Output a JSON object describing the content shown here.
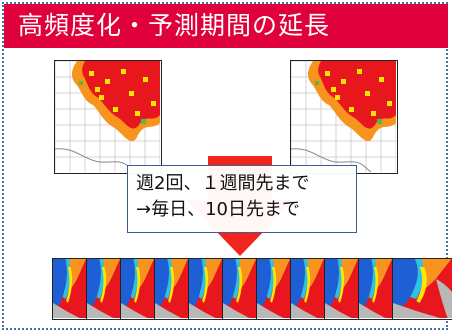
{
  "title": "高頻度化・予測期間の延長",
  "note": {
    "line1": "週2回、１週間先まで",
    "line2": "→毎日、10日先まで"
  },
  "colors": {
    "title_bg": "#e0003c",
    "frame_border": "#4a6ea8",
    "arrow": "#f0251e",
    "map_red": "#e8171d",
    "map_orange": "#f7941d",
    "map_yellow": "#ffe600",
    "map_green": "#54b948",
    "map_cyan": "#29c3e5",
    "map_blue": "#1f5fd6",
    "land_grey": "#b8b8b8"
  },
  "diagram": {
    "top_maps": [
      "map-left",
      "map-right"
    ],
    "forecast_tiles": 11
  }
}
